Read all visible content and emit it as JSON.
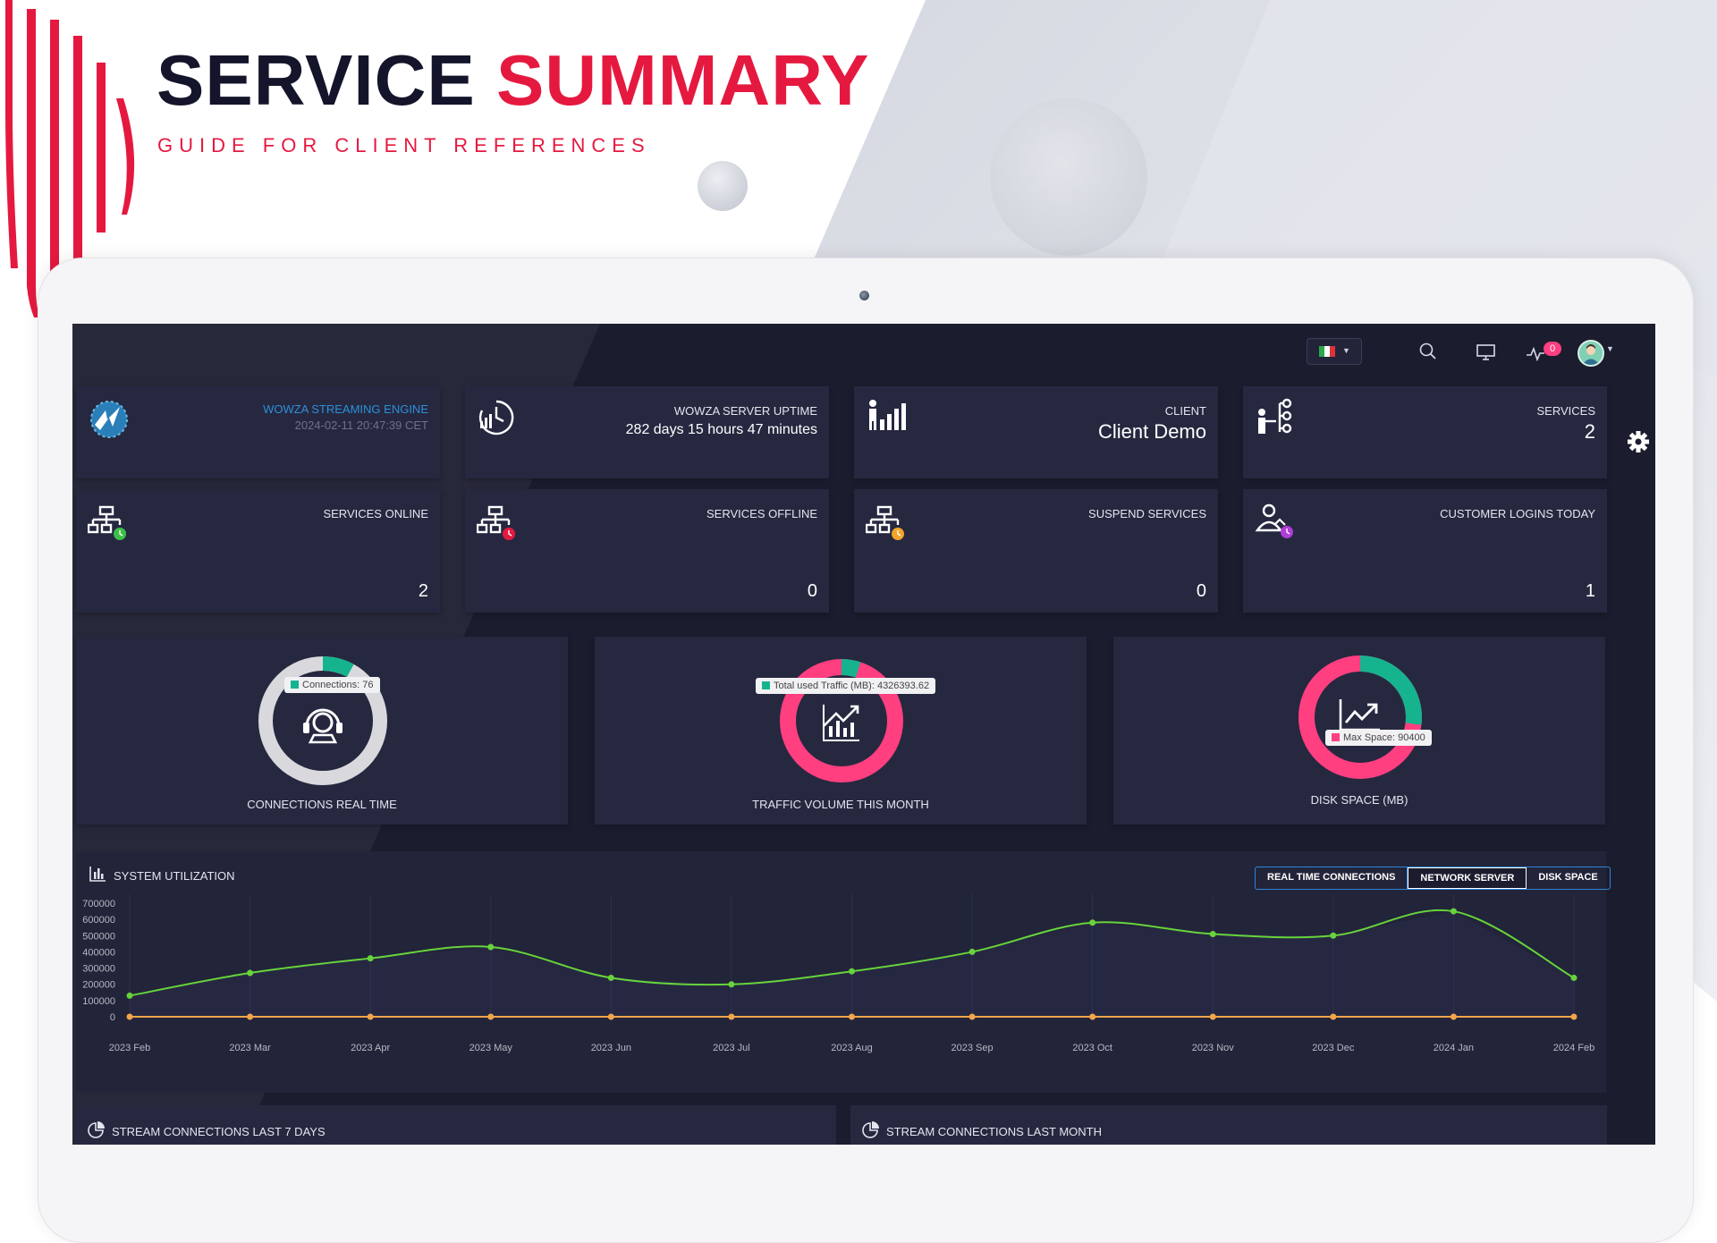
{
  "promo": {
    "title_dark": "SERVICE ",
    "title_accent": "SUMMARY",
    "subtitle": "GUIDE FOR CLIENT REFERENCES"
  },
  "colors": {
    "accent_red": "#e5193f",
    "navy": "#14142b",
    "screen_bg": "#1b1c2e",
    "card_bg": "#262840",
    "teal": "#16b38f",
    "pink": "#ff3f7f",
    "line_green": "#67d43b",
    "line_orange": "#f2a54a",
    "link_blue": "#2b8fd9"
  },
  "topbar": {
    "language_flag": "italy-flag",
    "notification_count": "0",
    "icons": [
      "search-icon",
      "monitor-icon",
      "activity-icon",
      "user-avatar"
    ]
  },
  "cards": {
    "wowza": {
      "name": "WOWZA STREAMING ENGINE",
      "date": "2024-02-11 20:47:39 CET",
      "icon": "wowza-logo-icon"
    },
    "uptime": {
      "label": "WOWZA SERVER UPTIME",
      "value": "282 days 15 hours 47 minutes",
      "icon": "clock-chart-icon"
    },
    "client": {
      "label": "CLIENT",
      "value": "Client Demo",
      "icon": "person-chart-icon"
    },
    "services": {
      "label": "SERVICES",
      "value": "2",
      "icon": "hierarchy-person-icon"
    },
    "services_online": {
      "label": "SERVICES ONLINE",
      "value": "2",
      "icon": "network-online-icon"
    },
    "services_offline": {
      "label": "SERVICES OFFLINE",
      "value": "0",
      "icon": "network-offline-icon"
    },
    "suspend_services": {
      "label": "SUSPEND SERVICES",
      "value": "0",
      "icon": "network-suspend-icon"
    },
    "customer_logins": {
      "label": "CUSTOMER LOGINS TODAY",
      "value": "1",
      "icon": "user-home-icon"
    }
  },
  "gauges": {
    "connections": {
      "label": "CONNECTIONS REAL TIME",
      "tooltip": "Connections: 76",
      "fraction": 0.08
    },
    "traffic": {
      "label": "TRAFFIC VOLUME THIS MONTH",
      "tooltip": "Total used Traffic (MB): 4326393.62",
      "fraction": 0.05
    },
    "disk": {
      "label": "DISK SPACE (MB)",
      "tooltip": "Max Space: 90400",
      "fraction": 0.27
    }
  },
  "utilization": {
    "title": "SYSTEM UTILIZATION",
    "tabs": [
      "REAL TIME CONNECTIONS",
      "NETWORK SERVER",
      "DISK SPACE"
    ],
    "active_tab": "NETWORK SERVER"
  },
  "bottom": {
    "left_title": "STREAM CONNECTIONS LAST 7 DAYS",
    "right_title": "STREAM CONNECTIONS LAST MONTH"
  },
  "chart_data": {
    "type": "line",
    "title": "SYSTEM UTILIZATION",
    "categories": [
      "2023 Feb",
      "2023 Mar",
      "2023 Apr",
      "2023 May",
      "2023 Jun",
      "2023 Jul",
      "2023 Aug",
      "2023 Sep",
      "2023 Oct",
      "2023 Nov",
      "2023 Dec",
      "2024 Jan",
      "2024 Feb"
    ],
    "yticks": [
      0,
      100000,
      200000,
      300000,
      400000,
      500000,
      600000,
      700000
    ],
    "ylim": [
      0,
      700000
    ],
    "grid": "vertical",
    "series": [
      {
        "color": "#67d43b",
        "values": [
          130000,
          270000,
          360000,
          430000,
          240000,
          200000,
          280000,
          400000,
          580000,
          510000,
          500000,
          650000,
          240000
        ]
      },
      {
        "color": "#f2a54a",
        "values": [
          0,
          0,
          0,
          0,
          0,
          0,
          0,
          0,
          0,
          0,
          0,
          0,
          0
        ]
      }
    ]
  }
}
